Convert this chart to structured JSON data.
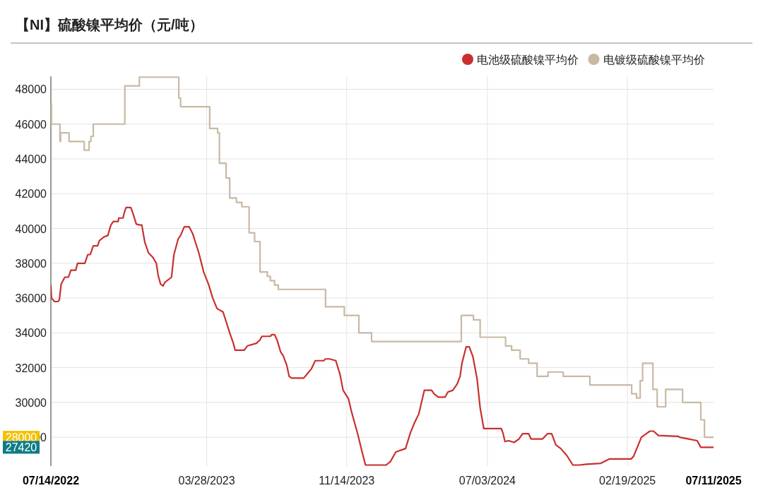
{
  "chart_data": {
    "type": "line",
    "title": "【NI】硫酸镍平均价（元/吨）",
    "xlim": [
      "2022-07-14",
      "2025-07-11"
    ],
    "xticks": [
      {
        "value": "2022-07-14",
        "label": "07/14/2022"
      },
      {
        "value": "2023-03-28",
        "label": "03/28/2023"
      },
      {
        "value": "2023-11-14",
        "label": "11/14/2023"
      },
      {
        "value": "2024-07-03",
        "label": "07/03/2024"
      },
      {
        "value": "2025-02-19",
        "label": "02/19/2025"
      },
      {
        "value": "2025-07-11",
        "label": "07/11/2025"
      }
    ],
    "ylim": [
      26340,
      48750
    ],
    "yticks": [
      28000,
      30000,
      32000,
      34000,
      36000,
      38000,
      40000,
      42000,
      44000,
      46000,
      48000
    ],
    "grid": true,
    "legend": "top right",
    "annotations": [
      "28000",
      "27420"
    ],
    "series": [
      {
        "name": "电池级硫酸镍平均价",
        "type": "line",
        "color": "#c8302e",
        "x": [
          "2022-07-14",
          "2022-07-15",
          "2022-07-20",
          "2022-07-26",
          "2022-07-28",
          "2022-07-31",
          "2022-08-06",
          "2022-08-12",
          "2022-08-16",
          "2022-08-24",
          "2022-08-27",
          "2022-09-08",
          "2022-09-13",
          "2022-09-17",
          "2022-09-22",
          "2022-09-29",
          "2022-10-02",
          "2022-10-09",
          "2022-10-16",
          "2022-10-21",
          "2022-10-25",
          "2022-11-02",
          "2022-11-03",
          "2022-11-10",
          "2022-11-12",
          "2022-11-15",
          "2022-11-23",
          "2022-11-27",
          "2022-12-02",
          "2022-12-08",
          "2022-12-11",
          "2022-12-16",
          "2022-12-22",
          "2022-12-29",
          "2023-01-04",
          "2023-01-07",
          "2023-01-11",
          "2023-01-15",
          "2023-01-18",
          "2023-01-29",
          "2023-02-02",
          "2023-02-09",
          "2023-02-13",
          "2023-02-19",
          "2023-02-27",
          "2023-03-05",
          "2023-03-09",
          "2023-03-15",
          "2023-03-23",
          "2023-03-31",
          "2023-04-07",
          "2023-04-14",
          "2023-04-24",
          "2023-05-05",
          "2023-05-11",
          "2023-05-14",
          "2023-05-29",
          "2023-06-03",
          "2023-06-18",
          "2023-06-24",
          "2023-06-27",
          "2023-07-11",
          "2023-07-13",
          "2023-07-18",
          "2023-07-22",
          "2023-07-28",
          "2023-08-01",
          "2023-08-07",
          "2023-08-11",
          "2023-08-15",
          "2023-09-04",
          "2023-09-10",
          "2023-09-17",
          "2023-09-23",
          "2023-10-07",
          "2023-10-10",
          "2023-10-17",
          "2023-10-27",
          "2023-11-03",
          "2023-11-08",
          "2023-11-17",
          "2023-11-22",
          "2023-12-02",
          "2023-12-09",
          "2023-12-15",
          "2024-01-18",
          "2024-01-25",
          "2024-02-03",
          "2024-02-19",
          "2024-02-27",
          "2024-03-05",
          "2024-03-12",
          "2024-03-21",
          "2024-04-02",
          "2024-04-06",
          "2024-04-13",
          "2024-04-24",
          "2024-04-29",
          "2024-05-07",
          "2024-05-14",
          "2024-05-19",
          "2024-05-22",
          "2024-05-29",
          "2024-06-03",
          "2024-06-09",
          "2024-06-16",
          "2024-06-21",
          "2024-06-27",
          "2024-07-26",
          "2024-07-29",
          "2024-08-01",
          "2024-08-07",
          "2024-08-16",
          "2024-08-24",
          "2024-08-30",
          "2024-09-09",
          "2024-09-13",
          "2024-10-02",
          "2024-10-10",
          "2024-10-17",
          "2024-10-24",
          "2024-11-01",
          "2024-11-11",
          "2024-11-21",
          "2024-12-02",
          "2024-12-13",
          "2025-01-06",
          "2025-01-20",
          "2025-02-25",
          "2025-03-01",
          "2025-03-07",
          "2025-03-14",
          "2025-03-22",
          "2025-03-28",
          "2025-04-03",
          "2025-04-11",
          "2025-05-14",
          "2025-05-16",
          "2025-05-31",
          "2025-06-14",
          "2025-06-20",
          "2025-07-11"
        ],
        "values": [
          36720,
          36000,
          35800,
          35800,
          35900,
          36800,
          37200,
          37200,
          37600,
          37600,
          38000,
          38000,
          38500,
          38500,
          39000,
          39000,
          39300,
          39500,
          39600,
          40200,
          40400,
          40400,
          40600,
          40600,
          40900,
          41200,
          41200,
          40800,
          40250,
          40200,
          40200,
          39200,
          38600,
          38350,
          38000,
          37300,
          36800,
          36700,
          36900,
          37200,
          38500,
          39400,
          39600,
          40100,
          40100,
          39700,
          39250,
          38600,
          37500,
          36800,
          36000,
          35400,
          35200,
          34000,
          33400,
          33000,
          33000,
          33250,
          33400,
          33600,
          33800,
          33800,
          33900,
          33900,
          33600,
          32900,
          32700,
          32150,
          31500,
          31400,
          31400,
          31650,
          31950,
          32400,
          32400,
          32500,
          32500,
          32400,
          31600,
          30700,
          30200,
          29450,
          28200,
          27200,
          26400,
          26400,
          26600,
          27150,
          27350,
          28250,
          28850,
          29350,
          30700,
          30700,
          30500,
          30300,
          30300,
          30600,
          30700,
          31050,
          31500,
          32250,
          33200,
          33200,
          32650,
          31350,
          29700,
          28500,
          28500,
          28200,
          27750,
          27800,
          27700,
          27900,
          28200,
          28200,
          27900,
          27900,
          28200,
          28200,
          27550,
          27350,
          26950,
          26400,
          26400,
          26450,
          26500,
          26750,
          26750,
          26900,
          27400,
          28000,
          28200,
          28350,
          28350,
          28100,
          28050,
          28000,
          27900,
          27800,
          27420,
          27420
        ]
      },
      {
        "name": "电镀级硫酸镍平均价",
        "type": "step",
        "color": "#c8b9a4",
        "x": [
          "2022-07-14",
          "2022-07-15",
          "2022-07-29",
          "2022-07-30",
          "2022-08-13",
          "2022-09-07",
          "2022-09-15",
          "2022-09-18",
          "2022-09-22",
          "2022-11-13",
          "2022-12-07",
          "2023-02-10",
          "2023-02-13",
          "2023-04-02",
          "2023-04-15",
          "2023-04-18",
          "2023-04-29",
          "2023-05-05",
          "2023-05-16",
          "2023-05-25",
          "2023-06-06",
          "2023-06-15",
          "2023-06-24",
          "2023-07-06",
          "2023-07-11",
          "2023-07-18",
          "2023-07-24",
          "2023-10-10",
          "2023-11-10",
          "2023-12-04",
          "2023-12-25",
          "2024-05-21",
          "2024-06-10",
          "2024-06-21",
          "2024-08-02",
          "2024-08-12",
          "2024-08-26",
          "2024-09-09",
          "2024-09-23",
          "2024-10-11",
          "2024-11-05",
          "2024-12-19",
          "2025-02-26",
          "2025-03-06",
          "2025-03-12",
          "2025-03-16",
          "2025-04-02",
          "2025-04-09",
          "2025-04-23",
          "2025-05-21",
          "2025-06-20",
          "2025-06-26",
          "2025-07-11"
        ],
        "values": [
          47200,
          46000,
          45000,
          45500,
          45000,
          44500,
          45000,
          45300,
          46000,
          48200,
          48700,
          47500,
          47000,
          45750,
          45500,
          43750,
          42900,
          41750,
          41500,
          41250,
          39750,
          39250,
          37500,
          37250,
          37000,
          36750,
          36500,
          35500,
          35000,
          34000,
          33500,
          35000,
          34750,
          33750,
          33250,
          33000,
          32500,
          32250,
          31500,
          31750,
          31500,
          31000,
          30500,
          30250,
          31250,
          32250,
          30750,
          29750,
          30750,
          30000,
          29000,
          28000,
          28000
        ]
      }
    ]
  }
}
